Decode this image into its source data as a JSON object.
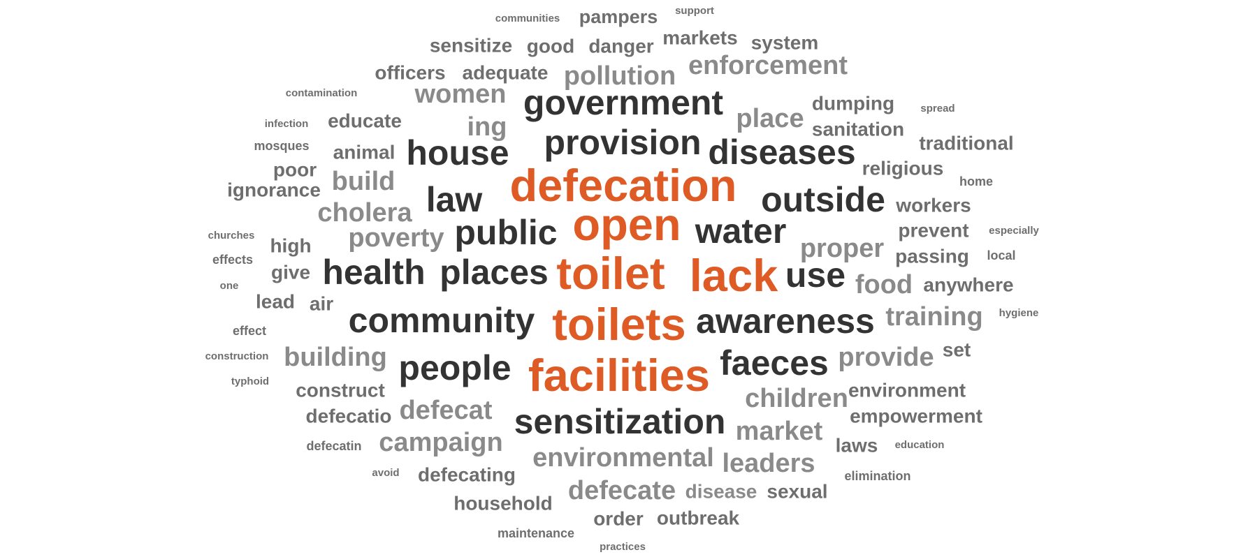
{
  "colors": {
    "accent": "#de5b25",
    "dark": "#333333",
    "mid": "#6e6e6e",
    "light": "#8a8a8a"
  },
  "words": [
    {
      "text": "communities",
      "tone": "mid"
    },
    {
      "text": "pampers",
      "tone": "mid"
    },
    {
      "text": "support",
      "tone": "mid"
    },
    {
      "text": "sensitize",
      "tone": "mid"
    },
    {
      "text": "good",
      "tone": "mid"
    },
    {
      "text": "danger",
      "tone": "mid"
    },
    {
      "text": "markets",
      "tone": "mid"
    },
    {
      "text": "system",
      "tone": "mid"
    },
    {
      "text": "officers",
      "tone": "mid"
    },
    {
      "text": "adequate",
      "tone": "mid"
    },
    {
      "text": "pollution",
      "tone": "light"
    },
    {
      "text": "enforcement",
      "tone": "light"
    },
    {
      "text": "contamination",
      "tone": "mid"
    },
    {
      "text": "women",
      "tone": "light"
    },
    {
      "text": "government",
      "tone": "dark"
    },
    {
      "text": "dumping",
      "tone": "mid"
    },
    {
      "text": "spread",
      "tone": "mid"
    },
    {
      "text": "infection",
      "tone": "mid"
    },
    {
      "text": "educate",
      "tone": "mid"
    },
    {
      "text": "ing",
      "tone": "light"
    },
    {
      "text": "place",
      "tone": "light"
    },
    {
      "text": "sanitation",
      "tone": "mid"
    },
    {
      "text": "mosques",
      "tone": "mid"
    },
    {
      "text": "animal",
      "tone": "mid"
    },
    {
      "text": "house",
      "tone": "dark"
    },
    {
      "text": "provision",
      "tone": "dark"
    },
    {
      "text": "diseases",
      "tone": "dark"
    },
    {
      "text": "traditional",
      "tone": "mid"
    },
    {
      "text": "poor",
      "tone": "mid"
    },
    {
      "text": "build",
      "tone": "light"
    },
    {
      "text": "religious",
      "tone": "mid"
    },
    {
      "text": "home",
      "tone": "mid"
    },
    {
      "text": "ignorance",
      "tone": "mid"
    },
    {
      "text": "defecation",
      "tone": "accent"
    },
    {
      "text": "law",
      "tone": "dark"
    },
    {
      "text": "outside",
      "tone": "dark"
    },
    {
      "text": "cholera",
      "tone": "light"
    },
    {
      "text": "workers",
      "tone": "mid"
    },
    {
      "text": "open",
      "tone": "accent"
    },
    {
      "text": "churches",
      "tone": "mid"
    },
    {
      "text": "poverty",
      "tone": "light"
    },
    {
      "text": "public",
      "tone": "dark"
    },
    {
      "text": "water",
      "tone": "dark"
    },
    {
      "text": "prevent",
      "tone": "mid"
    },
    {
      "text": "especially",
      "tone": "mid"
    },
    {
      "text": "high",
      "tone": "mid"
    },
    {
      "text": "proper",
      "tone": "light"
    },
    {
      "text": "effects",
      "tone": "mid"
    },
    {
      "text": "passing",
      "tone": "mid"
    },
    {
      "text": "local",
      "tone": "mid"
    },
    {
      "text": "give",
      "tone": "mid"
    },
    {
      "text": "health",
      "tone": "dark"
    },
    {
      "text": "places",
      "tone": "dark"
    },
    {
      "text": "toilet",
      "tone": "accent"
    },
    {
      "text": "lack",
      "tone": "accent"
    },
    {
      "text": "use",
      "tone": "dark"
    },
    {
      "text": "one",
      "tone": "mid"
    },
    {
      "text": "food",
      "tone": "light"
    },
    {
      "text": "anywhere",
      "tone": "mid"
    },
    {
      "text": "lead",
      "tone": "mid"
    },
    {
      "text": "air",
      "tone": "mid"
    },
    {
      "text": "community",
      "tone": "dark"
    },
    {
      "text": "toilets",
      "tone": "accent"
    },
    {
      "text": "awareness",
      "tone": "dark"
    },
    {
      "text": "training",
      "tone": "light"
    },
    {
      "text": "hygiene",
      "tone": "mid"
    },
    {
      "text": "effect",
      "tone": "mid"
    },
    {
      "text": "construction",
      "tone": "mid"
    },
    {
      "text": "building",
      "tone": "light"
    },
    {
      "text": "set",
      "tone": "mid"
    },
    {
      "text": "provide",
      "tone": "light"
    },
    {
      "text": "people",
      "tone": "dark"
    },
    {
      "text": "faeces",
      "tone": "dark"
    },
    {
      "text": "typhoid",
      "tone": "mid"
    },
    {
      "text": "facilities",
      "tone": "accent"
    },
    {
      "text": "construct",
      "tone": "mid"
    },
    {
      "text": "environment",
      "tone": "mid"
    },
    {
      "text": "children",
      "tone": "light"
    },
    {
      "text": "defecatio",
      "tone": "mid"
    },
    {
      "text": "defecat",
      "tone": "light"
    },
    {
      "text": "empowerment",
      "tone": "mid"
    },
    {
      "text": "sensitization",
      "tone": "dark"
    },
    {
      "text": "market",
      "tone": "light"
    },
    {
      "text": "campaign",
      "tone": "light"
    },
    {
      "text": "defecatin",
      "tone": "mid"
    },
    {
      "text": "laws",
      "tone": "mid"
    },
    {
      "text": "education",
      "tone": "mid"
    },
    {
      "text": "environmental",
      "tone": "light"
    },
    {
      "text": "leaders",
      "tone": "light"
    },
    {
      "text": "avoid",
      "tone": "mid"
    },
    {
      "text": "defecating",
      "tone": "mid"
    },
    {
      "text": "elimination",
      "tone": "mid"
    },
    {
      "text": "defecate",
      "tone": "light"
    },
    {
      "text": "disease",
      "tone": "light"
    },
    {
      "text": "sexual",
      "tone": "mid"
    },
    {
      "text": "household",
      "tone": "mid"
    },
    {
      "text": "order",
      "tone": "mid"
    },
    {
      "text": "outbreak",
      "tone": "mid"
    },
    {
      "text": "maintenance",
      "tone": "mid"
    },
    {
      "text": "practices",
      "tone": "mid"
    }
  ]
}
